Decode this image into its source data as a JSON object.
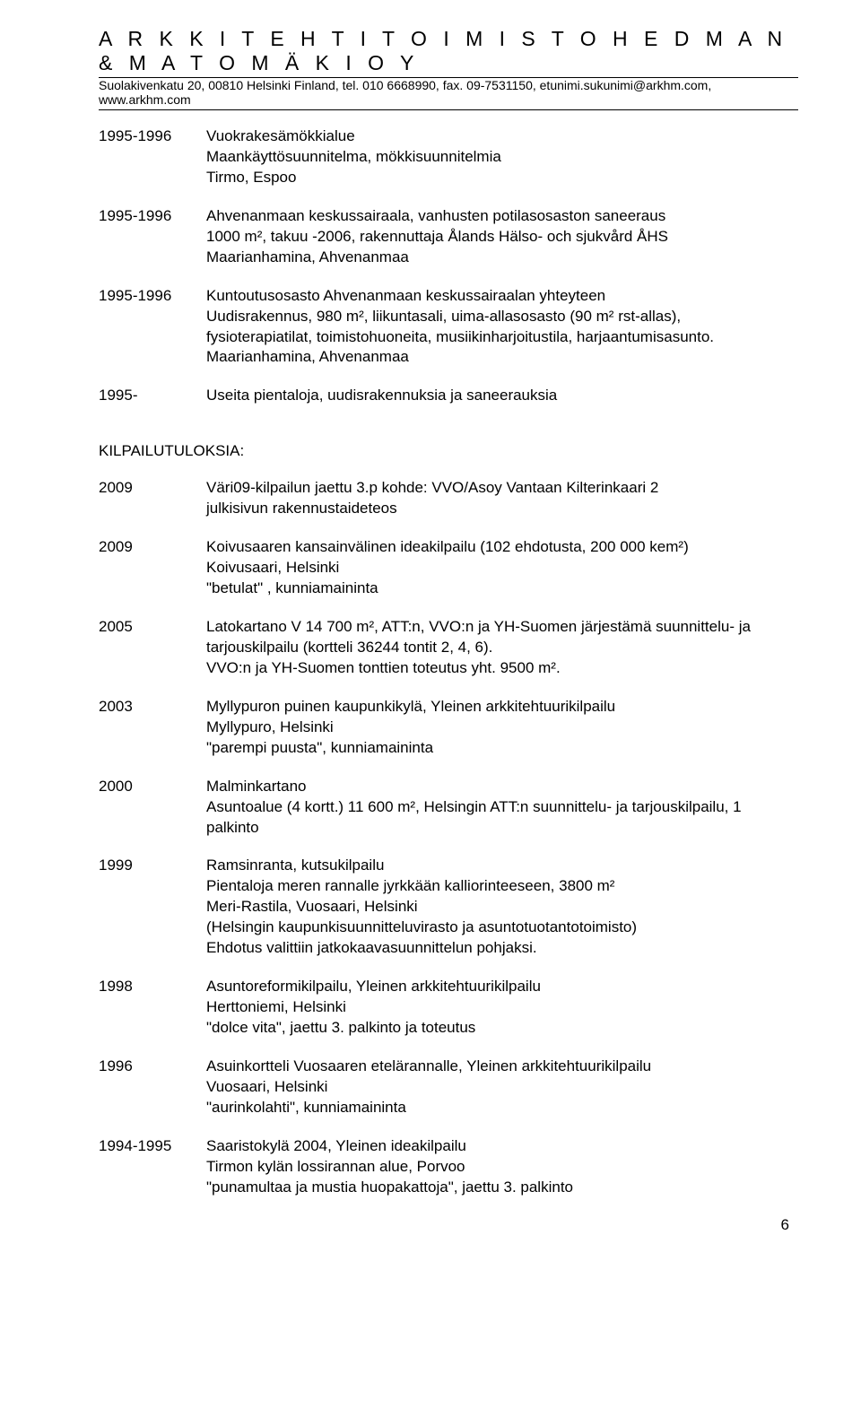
{
  "header": {
    "title": "A R K K I T E H T I T O I M I S T O  H E D M A N  &  M A T O M Ä K I  O Y",
    "subtitle": "Suolakivenkatu 20, 00810 Helsinki Finland,   tel. 010 6668990, fax. 09-7531150,   etunimi.sukunimi@arkhm.com, www.arkhm.com"
  },
  "projects": [
    {
      "year": "1995-1996",
      "desc": "Vuokrakesämökkialue\nMaankäyttösuunnitelma, mökkisuunnitelmia\nTirmo, Espoo"
    },
    {
      "year": "1995-1996",
      "desc": "Ahvenanmaan keskussairaala, vanhusten potilasosaston saneeraus\n1000 m², takuu -2006, rakennuttaja Ålands Hälso- och sjukvård ÅHS\nMaarianhamina, Ahvenanmaa"
    },
    {
      "year": "1995-1996",
      "desc": "Kuntoutusosasto Ahvenanmaan keskussairaalan yhteyteen\nUudisrakennus, 980 m², liikuntasali, uima-allasosasto (90 m² rst-allas),\nfysioterapiatilat, toimistohuoneita, musiikinharjoitustila, harjaantumisasunto.\nMaarianhamina, Ahvenanmaa"
    },
    {
      "year": "1995-",
      "desc": "Useita pientaloja, uudisrakennuksia ja saneerauksia"
    }
  ],
  "competitions_heading": "KILPAILUTULOKSIA:",
  "competitions": [
    {
      "year": "2009",
      "desc": "Väri09-kilpailun jaettu 3.p kohde: VVO/Asoy Vantaan Kilterinkaari 2\njulkisivun rakennustaideteos"
    },
    {
      "year": "2009",
      "desc": "Koivusaaren kansainvälinen ideakilpailu (102 ehdotusta, 200 000 kem²)\nKoivusaari, Helsinki\n\"betulat\" , kunniamaininta"
    },
    {
      "year": "2005",
      "desc": "Latokartano V 14 700 m², ATT:n, VVO:n ja YH-Suomen järjestämä suunnittelu- ja\ntarjouskilpailu (kortteli 36244 tontit 2, 4, 6).\nVVO:n ja YH-Suomen tonttien toteutus yht. 9500 m²."
    },
    {
      "year": "2003",
      "desc": "Myllypuron puinen kaupunkikylä, Yleinen arkkitehtuurikilpailu\nMyllypuro, Helsinki\n\"parempi puusta\", kunniamaininta"
    },
    {
      "year": "2000",
      "desc": "Malminkartano\nAsuntoalue (4 kortt.) 11 600 m², Helsingin ATT:n suunnittelu- ja tarjouskilpailu, 1\npalkinto"
    },
    {
      "year": "1999",
      "desc": "Ramsinranta, kutsukilpailu\nPientaloja meren rannalle jyrkkään kalliorinteeseen, 3800 m²\nMeri-Rastila, Vuosaari, Helsinki\n(Helsingin kaupunkisuunnitteluvirasto ja asuntotuotantotoimisto)\nEhdotus valittiin jatkokaavasuunnittelun pohjaksi."
    },
    {
      "year": "1998",
      "desc": "Asuntoreformikilpailu, Yleinen arkkitehtuurikilpailu\nHerttoniemi, Helsinki\n\"dolce vita\", jaettu 3. palkinto ja toteutus"
    },
    {
      "year": "1996",
      "desc": "Asuinkortteli Vuosaaren etelärannalle,  Yleinen arkkitehtuurikilpailu\nVuosaari, Helsinki\n\"aurinkolahti\", kunniamaininta"
    },
    {
      "year": "1994-1995",
      "desc": "Saaristokylä 2004, Yleinen ideakilpailu\nTirmon kylän lossirannan alue, Porvoo\n\"punamultaa ja mustia huopakattoja\", jaettu 3. palkinto"
    }
  ],
  "page_number": "6"
}
